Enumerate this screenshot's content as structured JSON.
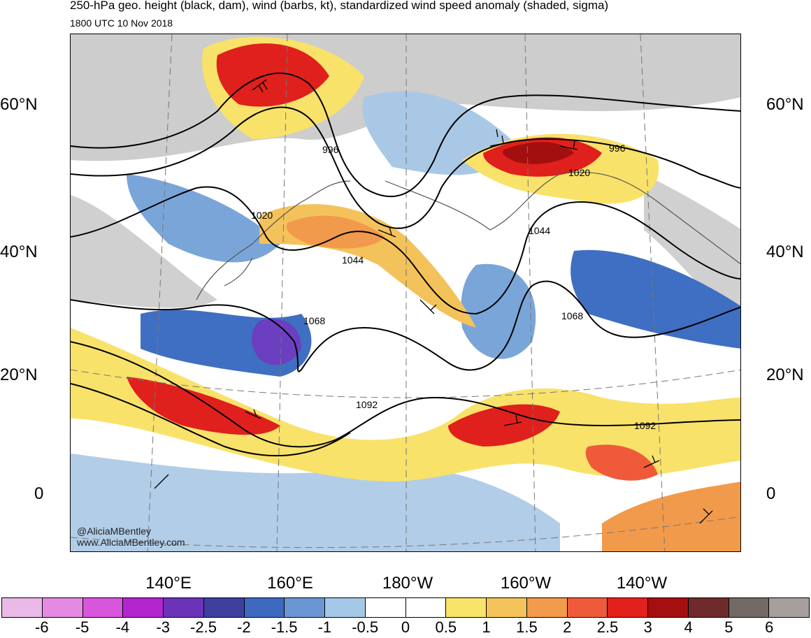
{
  "header": {
    "title": "250-hPa geo. height (black, dam), wind (barbs, kt), standardized wind speed anomaly (shaded, sigma)",
    "subtitle": "1800 UTC 10 Nov 2018"
  },
  "map": {
    "lat_labels_left": [
      "60°N",
      "40°N",
      "20°N",
      "0"
    ],
    "lat_labels_right": [
      "60°N",
      "40°N",
      "20°N",
      "0"
    ],
    "lon_labels": [
      "140°E",
      "160°E",
      "180°W",
      "160°W",
      "140°W"
    ],
    "contour_labels": [
      "996",
      "996",
      "1020",
      "1020",
      "1044",
      "1044",
      "1068",
      "1068",
      "1092",
      "1092"
    ],
    "colors": {
      "gray": "#c8c8c8",
      "neg_light": "#a9c8e6",
      "neg_med": "#7aa5d8",
      "neg_strong": "#3f6fc2",
      "neg_deep": "#2c3f9f",
      "neg_purple": "#6b3fbf",
      "pos_yellow": "#f8e26a",
      "pos_gold": "#f4c25a",
      "pos_orange": "#f29a4b",
      "pos_red_orange": "#ef5a3a",
      "pos_red": "#e0201c",
      "pos_dark_red": "#a30f0f"
    }
  },
  "colorbar": {
    "swatches": [
      "#e9b9e8",
      "#e48ae2",
      "#d856dc",
      "#b326cf",
      "#6b34b8",
      "#3f3f9f",
      "#3e69c0",
      "#6b96d3",
      "#a6c8e8",
      "#ffffff",
      "#ffffff",
      "#f9e46a",
      "#f5c35b",
      "#f29b4d",
      "#ef5b3a",
      "#e2201c",
      "#a60f0f",
      "#6f2b2b",
      "#736a66",
      "#a69f9d"
    ],
    "tick_labels": [
      "-6",
      "-5",
      "-4",
      "-3",
      "-2.5",
      "-2",
      "-1.5",
      "-1",
      "-0.5",
      "0",
      "0.5",
      "1",
      "1.5",
      "2",
      "2.5",
      "3",
      "4",
      "5",
      "6"
    ]
  },
  "credits": {
    "handle": "@AliciaMBentley",
    "site": "www.AliciaMBentley.com"
  }
}
